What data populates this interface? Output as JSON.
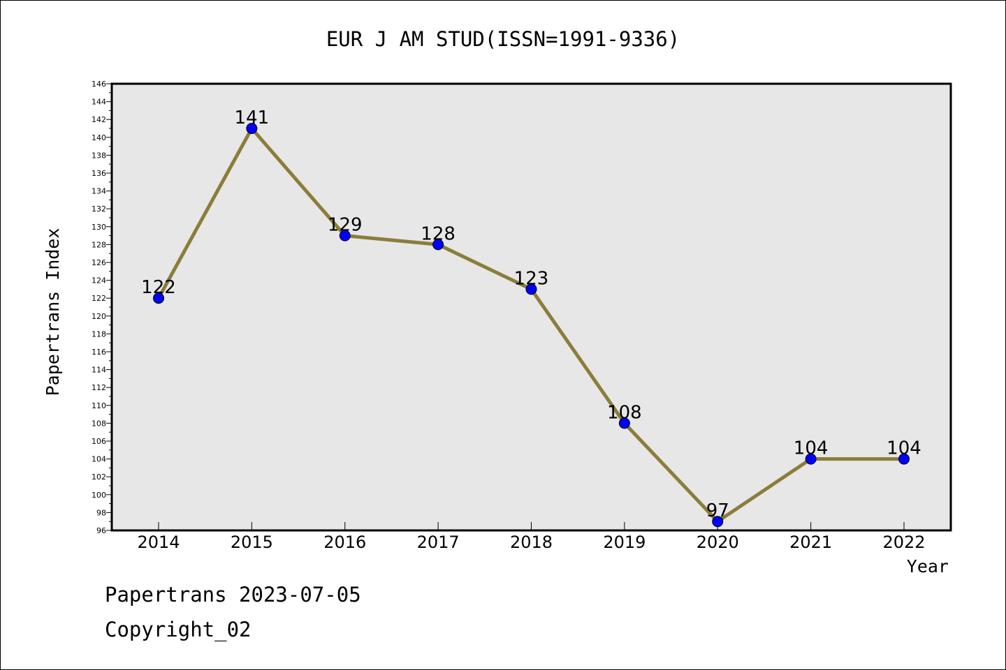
{
  "chart_data": {
    "type": "line",
    "title": "EUR J AM STUD(ISSN=1991-9336)",
    "xlabel": "Year",
    "ylabel": "Papertrans Index",
    "categories": [
      "2014",
      "2015",
      "2016",
      "2017",
      "2018",
      "2019",
      "2020",
      "2021",
      "2022"
    ],
    "series": [
      {
        "values": [
          122,
          141,
          129,
          128,
          123,
          108,
          97,
          104,
          104
        ]
      }
    ],
    "ylim": [
      96,
      146
    ],
    "ytick_step": 2,
    "grid": false,
    "legend": "none",
    "colors": {
      "line": "#8B7D3A",
      "marker": "#0000FF",
      "plot_bg": "#E7E7E7"
    }
  },
  "footer": {
    "line1": "Papertrans 2023-07-05",
    "line2": "Copyright_02"
  }
}
